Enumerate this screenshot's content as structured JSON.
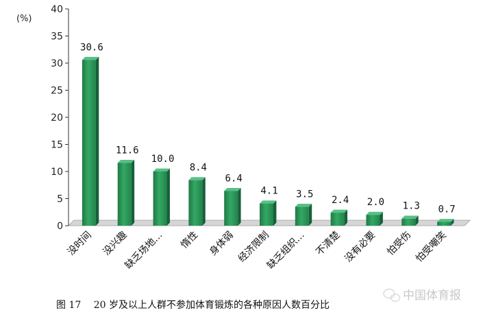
{
  "chart_data": {
    "type": "bar",
    "title": "",
    "ylabel": "(%)",
    "xlabel": "",
    "ylim": [
      0,
      40
    ],
    "yticks": [
      0,
      5,
      10,
      15,
      20,
      25,
      30,
      35,
      40
    ],
    "grid": false,
    "categories": [
      "没时间",
      "没兴趣",
      "缺乏场地…",
      "惰性",
      "身体弱",
      "经济限制",
      "缺乏组织…",
      "不清楚",
      "没有必要",
      "怕受伤",
      "怕受嘲笑"
    ],
    "values": [
      30.6,
      11.6,
      10.0,
      8.4,
      6.4,
      4.1,
      3.5,
      2.4,
      2.0,
      1.3,
      0.7
    ],
    "value_labels": [
      "30.6",
      "11.6",
      "10.0",
      "8.4",
      "6.4",
      "4.1",
      "3.5",
      "2.4",
      "2.0",
      "1.3",
      "0.7"
    ],
    "bar_color": "#2e9a5c"
  },
  "caption": "图 17　 20 岁及以上人群不参加体育锻炼的各种原因人数百分比",
  "watermark": "中国体育报"
}
